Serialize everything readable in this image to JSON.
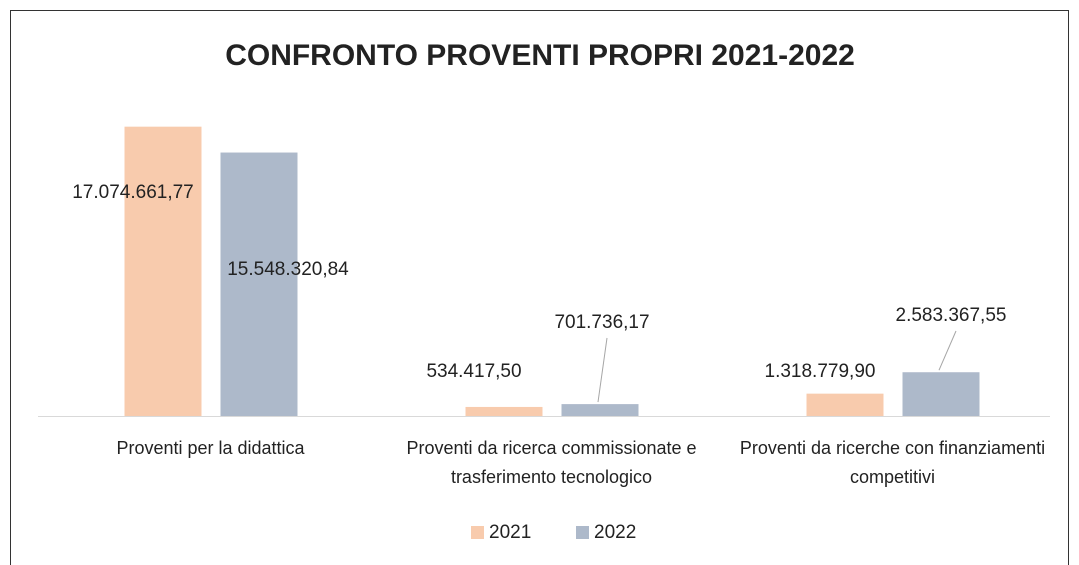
{
  "chart_data": {
    "type": "bar",
    "title": "CONFRONTO PROVENTI PROPRI 2021-2022",
    "categories": [
      "Proventi per la didattica",
      "Proventi da ricerca commissionate e trasferimento tecnologico",
      "Proventi da ricerche con finanziamenti competitivi"
    ],
    "series": [
      {
        "name": "2021",
        "color": "#f8cbad",
        "values": [
          17074661.77,
          534417.5,
          1318779.9
        ],
        "value_labels": [
          "17.074.661,77",
          "534.417,50",
          "1.318.779,90"
        ]
      },
      {
        "name": "2022",
        "color": "#adb9ca",
        "values": [
          15548320.84,
          701736.17,
          2583367.55
        ],
        "value_labels": [
          "15.548.320,84",
          "701.736,17",
          "2.583.367,55"
        ]
      }
    ],
    "ylim": [
      0,
      18000000
    ],
    "legend": "bottom"
  }
}
